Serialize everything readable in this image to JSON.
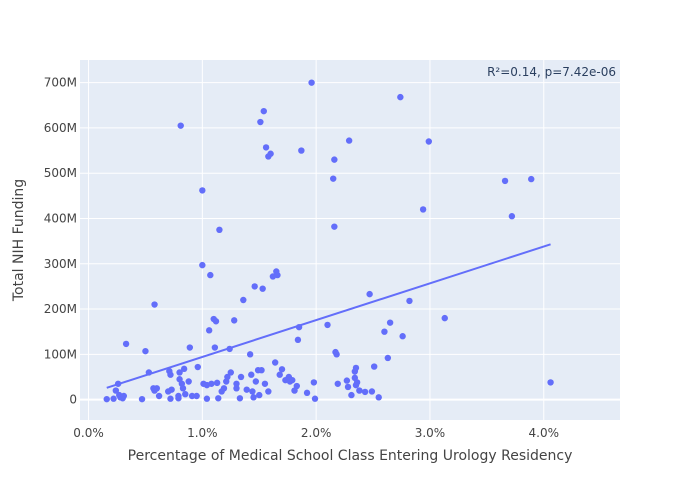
{
  "chart_data": {
    "type": "scatter",
    "xlabel": "Percentage of Medical School Class Entering Urology Residency",
    "ylabel": "Total NIH Funding",
    "xlim": [
      -0.00075,
      0.0467
    ],
    "ylim": [
      -45000000,
      750000000
    ],
    "x_ticks": [
      {
        "value": 0.0,
        "label": "0.0%"
      },
      {
        "value": 0.01,
        "label": "1.0%"
      },
      {
        "value": 0.02,
        "label": "2.0%"
      },
      {
        "value": 0.03,
        "label": "3.0%"
      },
      {
        "value": 0.04,
        "label": "4.0%"
      }
    ],
    "y_ticks": [
      {
        "value": 0,
        "label": "0"
      },
      {
        "value": 100000000,
        "label": "100M"
      },
      {
        "value": 200000000,
        "label": "200M"
      },
      {
        "value": 300000000,
        "label": "300M"
      },
      {
        "value": 400000000,
        "label": "400M"
      },
      {
        "value": 500000000,
        "label": "500M"
      },
      {
        "value": 600000000,
        "label": "600M"
      },
      {
        "value": 700000000,
        "label": "700M"
      }
    ],
    "annotation": "R²=0.14, p=7.42e-06",
    "grid": true,
    "marker_color": "#636efa",
    "plot_bg": "#e5ecf6",
    "series": [
      {
        "points": [
          [
            0.0016,
            1000000
          ],
          [
            0.0022,
            2000000
          ],
          [
            0.0024,
            20000000
          ],
          [
            0.0026,
            35000000
          ],
          [
            0.0027,
            10000000
          ],
          [
            0.0028,
            5000000
          ],
          [
            0.003,
            3000000
          ],
          [
            0.0031,
            8000000
          ],
          [
            0.0033,
            123000000
          ],
          [
            0.0047,
            1000000
          ],
          [
            0.005,
            107000000
          ],
          [
            0.0053,
            60000000
          ],
          [
            0.0057,
            25000000
          ],
          [
            0.0058,
            20000000
          ],
          [
            0.0058,
            210000000
          ],
          [
            0.006,
            25000000
          ],
          [
            0.0062,
            8000000
          ],
          [
            0.007,
            18000000
          ],
          [
            0.0071,
            63000000
          ],
          [
            0.0072,
            55000000
          ],
          [
            0.0073,
            22000000
          ],
          [
            0.0072,
            2000000
          ],
          [
            0.0079,
            3000000
          ],
          [
            0.0079,
            8000000
          ],
          [
            0.008,
            60000000
          ],
          [
            0.008,
            45000000
          ],
          [
            0.0081,
            605000000
          ],
          [
            0.0082,
            35000000
          ],
          [
            0.0083,
            25000000
          ],
          [
            0.0084,
            68000000
          ],
          [
            0.0085,
            12000000
          ],
          [
            0.0088,
            40000000
          ],
          [
            0.0089,
            115000000
          ],
          [
            0.0091,
            8000000
          ],
          [
            0.0095,
            8000000
          ],
          [
            0.0096,
            72000000
          ],
          [
            0.01,
            462000000
          ],
          [
            0.01,
            297000000
          ],
          [
            0.0101,
            35000000
          ],
          [
            0.0104,
            32000000
          ],
          [
            0.0104,
            2000000
          ],
          [
            0.0106,
            153000000
          ],
          [
            0.0107,
            275000000
          ],
          [
            0.0108,
            35000000
          ],
          [
            0.011,
            178000000
          ],
          [
            0.0111,
            115000000
          ],
          [
            0.0112,
            173000000
          ],
          [
            0.0113,
            37000000
          ],
          [
            0.0114,
            3000000
          ],
          [
            0.0115,
            375000000
          ],
          [
            0.0117,
            18000000
          ],
          [
            0.0119,
            25000000
          ],
          [
            0.0121,
            40000000
          ],
          [
            0.0122,
            50000000
          ],
          [
            0.0124,
            112000000
          ],
          [
            0.0125,
            60000000
          ],
          [
            0.0128,
            175000000
          ],
          [
            0.013,
            35000000
          ],
          [
            0.013,
            25000000
          ],
          [
            0.0133,
            3000000
          ],
          [
            0.0134,
            50000000
          ],
          [
            0.0136,
            220000000
          ],
          [
            0.0139,
            22000000
          ],
          [
            0.0142,
            100000000
          ],
          [
            0.0143,
            55000000
          ],
          [
            0.0144,
            18000000
          ],
          [
            0.0145,
            5000000
          ],
          [
            0.0146,
            250000000
          ],
          [
            0.0147,
            40000000
          ],
          [
            0.0149,
            65000000
          ],
          [
            0.015,
            10000000
          ],
          [
            0.0151,
            613000000
          ],
          [
            0.0152,
            65000000
          ],
          [
            0.0153,
            245000000
          ],
          [
            0.0154,
            637000000
          ],
          [
            0.0155,
            35000000
          ],
          [
            0.0156,
            557000000
          ],
          [
            0.0158,
            537000000
          ],
          [
            0.0158,
            18000000
          ],
          [
            0.016,
            543000000
          ],
          [
            0.0162,
            272000000
          ],
          [
            0.0164,
            82000000
          ],
          [
            0.0165,
            283000000
          ],
          [
            0.0166,
            275000000
          ],
          [
            0.0168,
            55000000
          ],
          [
            0.017,
            67000000
          ],
          [
            0.0173,
            43000000
          ],
          [
            0.0176,
            50000000
          ],
          [
            0.0177,
            40000000
          ],
          [
            0.0179,
            43000000
          ],
          [
            0.0181,
            20000000
          ],
          [
            0.0183,
            30000000
          ],
          [
            0.0184,
            132000000
          ],
          [
            0.0185,
            160000000
          ],
          [
            0.0187,
            550000000
          ],
          [
            0.0192,
            15000000
          ],
          [
            0.0196,
            700000000
          ],
          [
            0.0198,
            38000000
          ],
          [
            0.0199,
            2000000
          ],
          [
            0.021,
            165000000
          ],
          [
            0.0215,
            488000000
          ],
          [
            0.0216,
            530000000
          ],
          [
            0.0216,
            382000000
          ],
          [
            0.0217,
            105000000
          ],
          [
            0.0218,
            100000000
          ],
          [
            0.0219,
            35000000
          ],
          [
            0.0227,
            42000000
          ],
          [
            0.0228,
            28000000
          ],
          [
            0.0229,
            572000000
          ],
          [
            0.0231,
            10000000
          ],
          [
            0.0234,
            62000000
          ],
          [
            0.0234,
            48000000
          ],
          [
            0.0235,
            70000000
          ],
          [
            0.0236,
            38000000
          ],
          [
            0.0235,
            32000000
          ],
          [
            0.0238,
            20000000
          ],
          [
            0.0243,
            17000000
          ],
          [
            0.0247,
            233000000
          ],
          [
            0.0249,
            18000000
          ],
          [
            0.0251,
            73000000
          ],
          [
            0.0255,
            5000000
          ],
          [
            0.026,
            150000000
          ],
          [
            0.0263,
            92000000
          ],
          [
            0.0265,
            170000000
          ],
          [
            0.0274,
            668000000
          ],
          [
            0.0276,
            140000000
          ],
          [
            0.0282,
            218000000
          ],
          [
            0.0294,
            420000000
          ],
          [
            0.0299,
            570000000
          ],
          [
            0.0313,
            180000000
          ],
          [
            0.0366,
            483000000
          ],
          [
            0.0372,
            405000000
          ],
          [
            0.0389,
            487000000
          ],
          [
            0.0406,
            38000000
          ]
        ]
      }
    ],
    "trendline": {
      "x": [
        0.0016,
        0.0406
      ],
      "y": [
        26000000,
        343000000
      ],
      "color": "#636efa"
    }
  }
}
